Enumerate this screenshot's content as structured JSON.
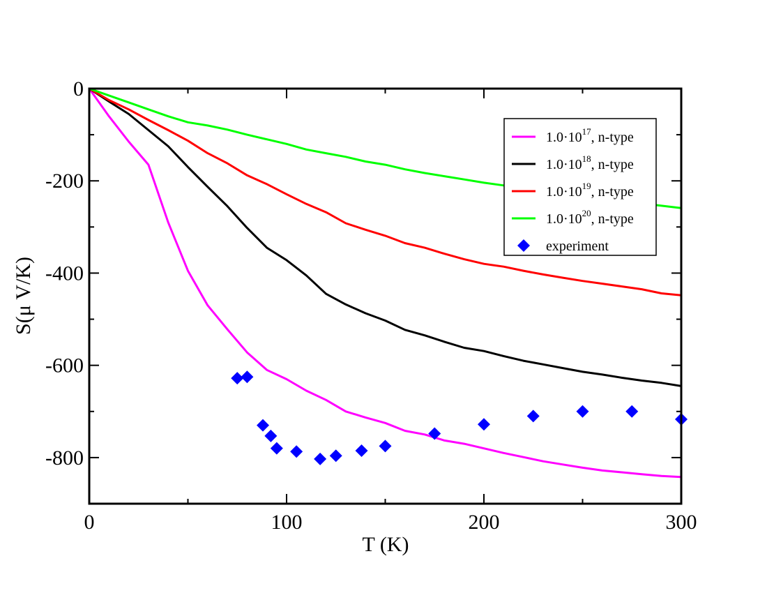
{
  "chart_data": {
    "type": "line",
    "title": "",
    "xlabel": "T (K)",
    "ylabel": "S(μ V/K)",
    "xlim": [
      0,
      300
    ],
    "ylim": [
      -900,
      0
    ],
    "xticks": [
      0,
      100,
      200,
      300
    ],
    "yticks": [
      0,
      -200,
      -400,
      -600,
      -800
    ],
    "grid": false,
    "legend_position": "top-right",
    "series": [
      {
        "name": "1.0·10^17, n-type",
        "legend": {
          "base": "1.0·10",
          "exp": "17",
          "suffix": ", n-type"
        },
        "color": "#ff00ff",
        "marker": "line",
        "x": [
          0,
          10,
          20,
          30,
          40,
          50,
          60,
          70,
          80,
          90,
          100,
          110,
          120,
          130,
          140,
          150,
          160,
          170,
          180,
          190,
          200,
          210,
          220,
          230,
          240,
          250,
          260,
          270,
          280,
          290,
          300
        ],
        "y": [
          0,
          -60,
          -115,
          -165,
          -290,
          -395,
          -470,
          -522,
          -572,
          -610,
          -630,
          -655,
          -675,
          -700,
          -713,
          -725,
          -742,
          -750,
          -763,
          -770,
          -780,
          -790,
          -799,
          -808,
          -815,
          -822,
          -828,
          -832,
          -836,
          -840,
          -842
        ]
      },
      {
        "name": "1.0·10^18, n-type",
        "legend": {
          "base": "1.0·10",
          "exp": "18",
          "suffix": ", n-type"
        },
        "color": "#000000",
        "marker": "line",
        "x": [
          0,
          10,
          20,
          30,
          40,
          50,
          60,
          70,
          80,
          90,
          100,
          110,
          120,
          130,
          140,
          150,
          160,
          170,
          180,
          190,
          200,
          210,
          220,
          230,
          240,
          250,
          260,
          270,
          280,
          290,
          300
        ],
        "y": [
          0,
          -28,
          -55,
          -90,
          -125,
          -170,
          -213,
          -255,
          -302,
          -345,
          -372,
          -405,
          -445,
          -468,
          -487,
          -503,
          -523,
          -535,
          -549,
          -562,
          -569,
          -580,
          -590,
          -598,
          -606,
          -614,
          -620,
          -627,
          -633,
          -638,
          -645
        ]
      },
      {
        "name": "1.0·10^19, n-type",
        "legend": {
          "base": "1.0·10",
          "exp": "19",
          "suffix": ", n-type"
        },
        "color": "#ff0000",
        "marker": "line",
        "x": [
          0,
          10,
          20,
          30,
          40,
          50,
          60,
          70,
          80,
          90,
          100,
          110,
          120,
          130,
          140,
          150,
          160,
          170,
          180,
          190,
          200,
          210,
          220,
          230,
          240,
          250,
          260,
          270,
          280,
          290,
          300
        ],
        "y": [
          0,
          -25,
          -45,
          -68,
          -90,
          -113,
          -140,
          -162,
          -188,
          -207,
          -229,
          -250,
          -268,
          -292,
          -306,
          -319,
          -335,
          -345,
          -358,
          -370,
          -380,
          -386,
          -395,
          -403,
          -410,
          -417,
          -423,
          -429,
          -435,
          -444,
          -448
        ]
      },
      {
        "name": "1.0·10^20, n-type",
        "legend": {
          "base": "1.0·10",
          "exp": "20",
          "suffix": ", n-type"
        },
        "color": "#00ff00",
        "marker": "line",
        "x": [
          0,
          10,
          20,
          30,
          40,
          50,
          60,
          70,
          80,
          90,
          100,
          110,
          120,
          130,
          140,
          150,
          160,
          170,
          180,
          190,
          200,
          210,
          220,
          230,
          240,
          250,
          260,
          270,
          280,
          290,
          300
        ],
        "y": [
          0,
          -15,
          -30,
          -45,
          -60,
          -73,
          -80,
          -89,
          -100,
          -110,
          -120,
          -132,
          -140,
          -148,
          -158,
          -165,
          -175,
          -183,
          -190,
          -197,
          -204,
          -210,
          -216,
          -222,
          -228,
          -235,
          -240,
          -245,
          -249,
          -254,
          -259
        ]
      },
      {
        "name": "experiment",
        "legend": {
          "base": "experiment",
          "exp": "",
          "suffix": ""
        },
        "color": "#0000ff",
        "marker": "diamond",
        "x": [
          75,
          80,
          88,
          92,
          95,
          105,
          117,
          125,
          138,
          150,
          175,
          200,
          225,
          250,
          275,
          300
        ],
        "y": [
          -628,
          -625,
          -730,
          -753,
          -780,
          -787,
          -803,
          -796,
          -785,
          -775,
          -748,
          -728,
          -710,
          -700,
          -700,
          -717
        ]
      }
    ]
  }
}
